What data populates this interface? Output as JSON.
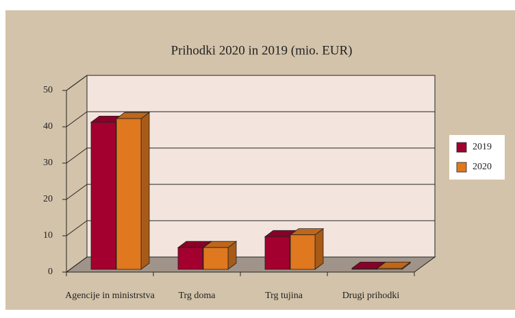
{
  "chart_data": {
    "type": "bar3d",
    "title": "Prihodki 2020 in 2019 (mio. EUR)",
    "categories": [
      "Agencije in ministrstva",
      "Trg doma",
      "Trg tujina",
      "Drugi prihodki"
    ],
    "series": [
      {
        "name": "2019",
        "color": "#a3002f",
        "values": [
          40.5,
          6,
          9,
          0.3
        ]
      },
      {
        "name": "2020",
        "color": "#e0781f",
        "values": [
          41.5,
          6,
          9.5,
          0.3
        ]
      }
    ],
    "ylim": [
      0,
      50
    ],
    "yticks": [
      0,
      10,
      20,
      30,
      40,
      50
    ],
    "grid": true,
    "legend": "right"
  }
}
